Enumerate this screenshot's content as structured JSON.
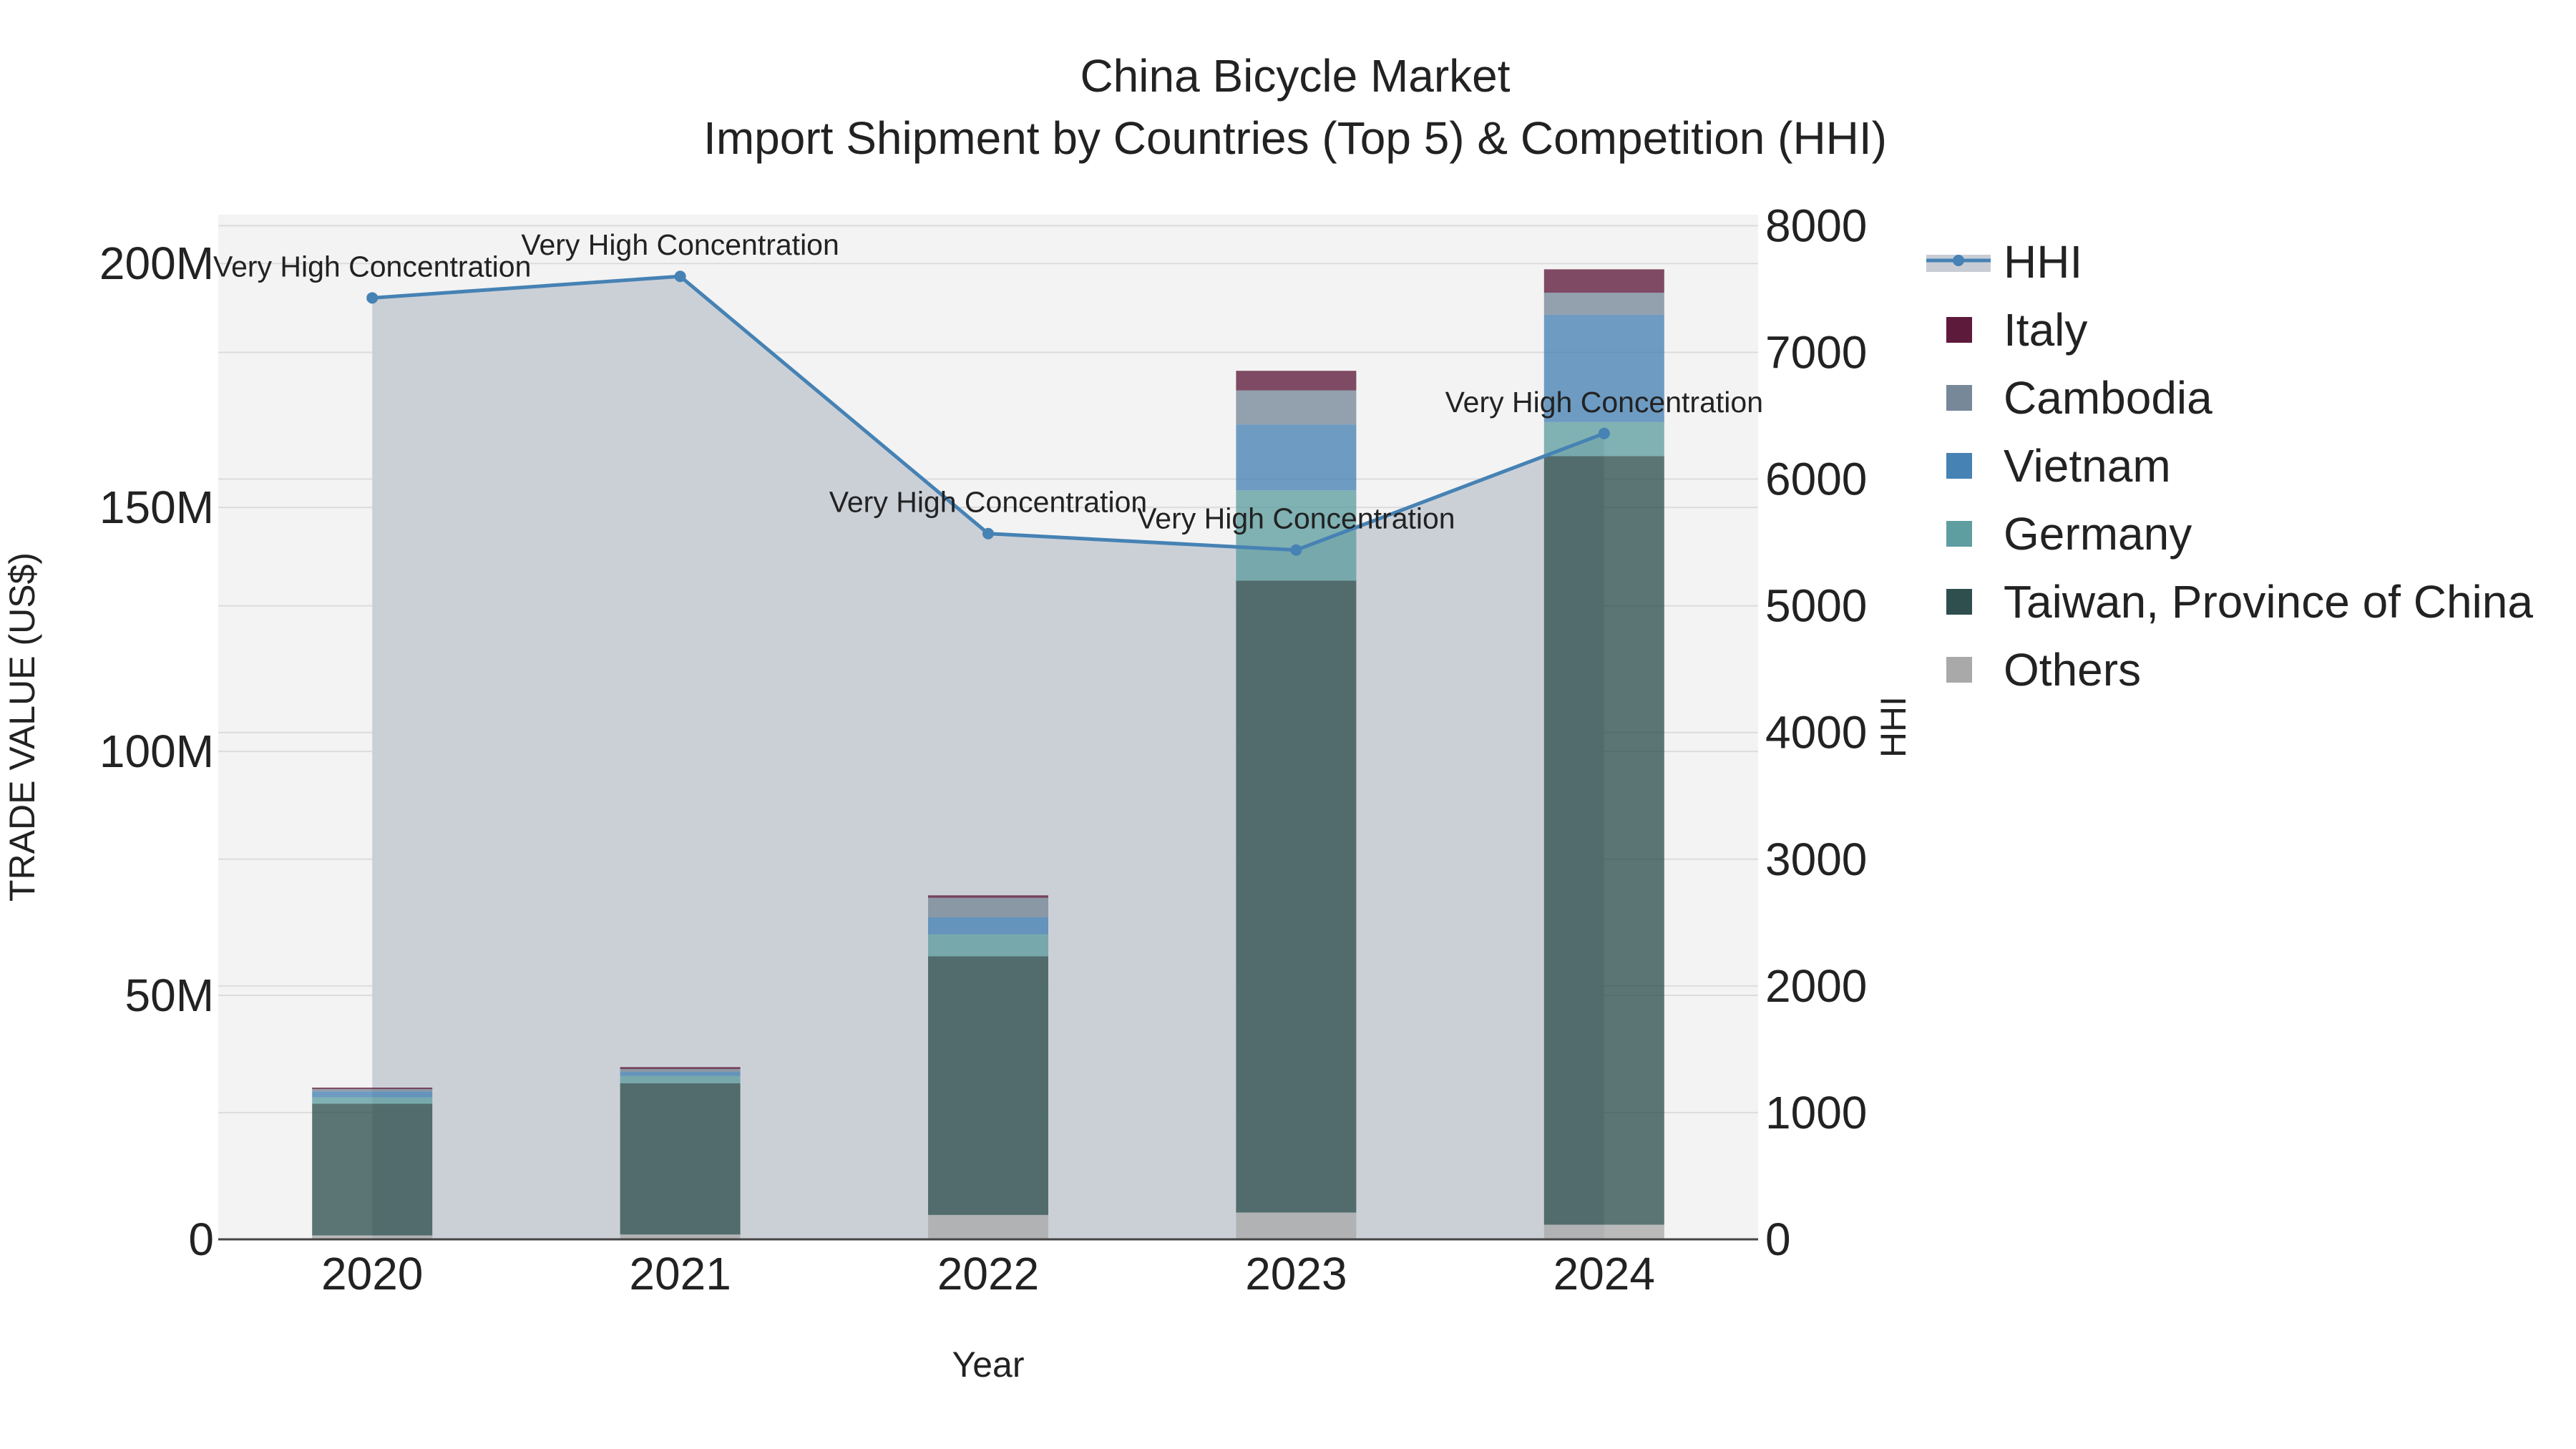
{
  "chart_data": {
    "type": "bar",
    "title": "China Bicycle Market",
    "subtitle": "Import Shipment by Countries (Top 5) & Competition (HHI)",
    "xlabel": "Year",
    "ylabel": "TRADE VALUE (US$)",
    "y2label": "HHI",
    "categories": [
      "2020",
      "2021",
      "2022",
      "2023",
      "2024"
    ],
    "ylim": [
      0,
      210000000
    ],
    "y2lim": [
      0,
      8087
    ],
    "yticks": [
      {
        "value": 0,
        "label": "0"
      },
      {
        "value": 50000000,
        "label": "50M"
      },
      {
        "value": 100000000,
        "label": "100M"
      },
      {
        "value": 150000000,
        "label": "150M"
      },
      {
        "value": 200000000,
        "label": "200M"
      }
    ],
    "y2ticks": [
      {
        "value": 0,
        "label": "0"
      },
      {
        "value": 1000,
        "label": "1000"
      },
      {
        "value": 2000,
        "label": "2000"
      },
      {
        "value": 3000,
        "label": "3000"
      },
      {
        "value": 4000,
        "label": "4000"
      },
      {
        "value": 5000,
        "label": "5000"
      },
      {
        "value": 6000,
        "label": "6000"
      },
      {
        "value": 7000,
        "label": "7000"
      },
      {
        "value": 8000,
        "label": "8000"
      }
    ],
    "grid": true,
    "legend_position": "right",
    "series": [
      {
        "name": "Others",
        "color": "#a9a9a9",
        "values": [
          800000,
          1000000,
          5000000,
          5500000,
          3000000
        ]
      },
      {
        "name": "Taiwan, Province of China",
        "color": "#2f4f4f",
        "values": [
          27000000,
          31000000,
          53000000,
          129500000,
          157500000
        ]
      },
      {
        "name": "Germany",
        "color": "#5f9ea0",
        "values": [
          1300000,
          1500000,
          4500000,
          18500000,
          7000000
        ]
      },
      {
        "name": "Vietnam",
        "color": "#4682b4",
        "values": [
          1200000,
          800000,
          3500000,
          13500000,
          22000000
        ]
      },
      {
        "name": "Cambodia",
        "color": "#778899",
        "values": [
          500000,
          600000,
          4000000,
          7000000,
          4500000
        ]
      },
      {
        "name": "Italy",
        "color": "#5e1a3a",
        "values": [
          300000,
          400000,
          500000,
          4000000,
          4800000
        ]
      }
    ],
    "hhi": {
      "name": "HHI",
      "color": "#4682b4",
      "fill_color": "#c8cdd5",
      "values": [
        7430,
        7600,
        5570,
        5440,
        6360
      ],
      "annotations": [
        "Very High Concentration",
        "Very High Concentration",
        "Very High Concentration",
        "Very High Concentration",
        "Very High Concentration"
      ]
    },
    "legend": [
      {
        "name": "HHI",
        "kind": "line"
      },
      {
        "name": "Italy",
        "kind": "box"
      },
      {
        "name": "Cambodia",
        "kind": "box"
      },
      {
        "name": "Vietnam",
        "kind": "box"
      },
      {
        "name": "Germany",
        "kind": "box"
      },
      {
        "name": "Taiwan, Province of China",
        "kind": "box"
      },
      {
        "name": "Others",
        "kind": "box"
      }
    ]
  }
}
